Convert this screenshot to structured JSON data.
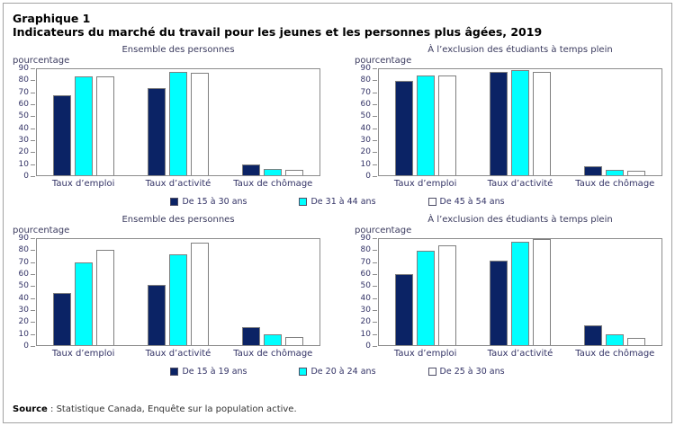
{
  "page": {
    "figure_label": "Graphique 1",
    "figure_title": "Indicateurs du marché du travail pour les jeunes et les personnes plus âgées, 2019",
    "source_label": "Source",
    "source_text": " : Statistique Canada, Enquête sur la population active."
  },
  "colors": {
    "series": [
      "#0b2365",
      "#00ffff",
      "#ffffff"
    ],
    "bar_border": "#7f7f7f",
    "plot_border": "#8c8c8c",
    "axis_text": "#333366"
  },
  "chart_data": [
    {
      "type": "bar",
      "title": "Ensemble des personnes",
      "ylabel": "pourcentage",
      "ylim": [
        0,
        90
      ],
      "ytick_step": 10,
      "grid": false,
      "legend_position": "bottom-shared",
      "categories": [
        "Taux d’emploi",
        "Taux d’activité",
        "Taux de chômage"
      ],
      "series": [
        {
          "name": "De 15 à 30 ans",
          "values": [
            68,
            74,
            9
          ]
        },
        {
          "name": "De 31 à 44 ans",
          "values": [
            84,
            88,
            5
          ]
        },
        {
          "name": "De 45 à 54 ans",
          "values": [
            84,
            87,
            4.5
          ]
        }
      ]
    },
    {
      "type": "bar",
      "title": "À l’exclusion des étudiants à temps plein",
      "ylabel": "pourcentage",
      "ylim": [
        0,
        90
      ],
      "ytick_step": 10,
      "grid": false,
      "legend_position": "bottom-shared",
      "categories": [
        "Taux d’emploi",
        "Taux d’activité",
        "Taux de chômage"
      ],
      "series": [
        {
          "name": "De 15 à 30 ans",
          "values": [
            80,
            87.5,
            8
          ]
        },
        {
          "name": "De 31 à 44 ans",
          "values": [
            85,
            89.5,
            4.5
          ]
        },
        {
          "name": "De 45 à 54 ans",
          "values": [
            84.5,
            88,
            4
          ]
        }
      ]
    },
    {
      "type": "bar",
      "title": "Ensemble des personnes",
      "ylabel": "pourcentage",
      "ylim": [
        0,
        90
      ],
      "ytick_step": 10,
      "grid": false,
      "legend_position": "bottom-shared",
      "categories": [
        "Taux d’emploi",
        "Taux d’activité",
        "Taux de chômage"
      ],
      "series": [
        {
          "name": "De 15 à 19 ans",
          "values": [
            44,
            51,
            15
          ]
        },
        {
          "name": "De 20 à 24 ans",
          "values": [
            70,
            77,
            9
          ]
        },
        {
          "name": "De 25 à 30 ans",
          "values": [
            81,
            87,
            6.5
          ]
        }
      ]
    },
    {
      "type": "bar",
      "title": "À l’exclusion des étudiants à temps plein",
      "ylabel": "pourcentage",
      "ylim": [
        0,
        90
      ],
      "ytick_step": 10,
      "grid": false,
      "legend_position": "bottom-shared",
      "categories": [
        "Taux d’emploi",
        "Taux d’activité",
        "Taux de chômage"
      ],
      "series": [
        {
          "name": "De 15 à 19 ans",
          "values": [
            60,
            72,
            16.5
          ]
        },
        {
          "name": "De 20 à 24 ans",
          "values": [
            80,
            88,
            9.5
          ]
        },
        {
          "name": "De 25 à 30 ans",
          "values": [
            85,
            90,
            6
          ]
        }
      ]
    }
  ],
  "legends": [
    {
      "items": [
        {
          "label": "De 15 à 30 ans"
        },
        {
          "label": "De 31 à 44 ans"
        },
        {
          "label": "De 45 à 54 ans"
        }
      ]
    },
    {
      "items": [
        {
          "label": "De 15 à 19 ans"
        },
        {
          "label": "De 20 à 24 ans"
        },
        {
          "label": "De 25 à 30 ans"
        }
      ]
    }
  ]
}
